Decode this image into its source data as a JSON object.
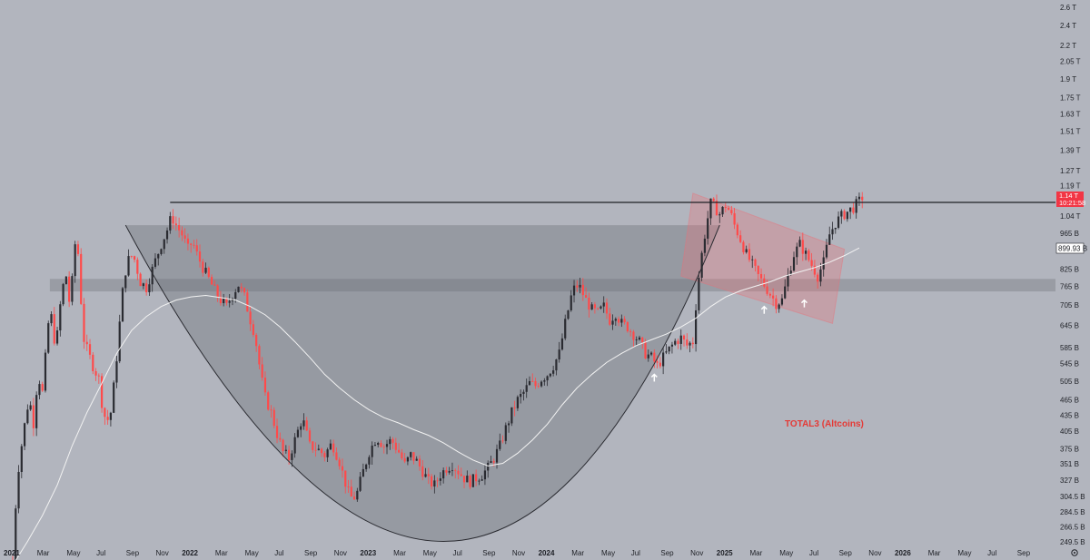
{
  "chart_data": {
    "type": "candlestick",
    "symbol_annotation": "TOTAL3 (Altcoins)",
    "y_scale": "log",
    "y_ticks": [
      {
        "label": "2.6 T",
        "value": 2600
      },
      {
        "label": "2.4 T",
        "value": 2400
      },
      {
        "label": "2.2 T",
        "value": 2200
      },
      {
        "label": "2.05 T",
        "value": 2050
      },
      {
        "label": "1.9 T",
        "value": 1900
      },
      {
        "label": "1.75 T",
        "value": 1750
      },
      {
        "label": "1.63 T",
        "value": 1630
      },
      {
        "label": "1.51 T",
        "value": 1510
      },
      {
        "label": "1.39 T",
        "value": 1390
      },
      {
        "label": "1.27 T",
        "value": 1270
      },
      {
        "label": "1.19 T",
        "value": 1190
      },
      {
        "label": "1.04 T",
        "value": 1040
      },
      {
        "label": "965 B",
        "value": 965
      },
      {
        "label": "825 B",
        "value": 825
      },
      {
        "label": "765 B",
        "value": 765
      },
      {
        "label": "705 B",
        "value": 705
      },
      {
        "label": "645 B",
        "value": 645
      },
      {
        "label": "585 B",
        "value": 585
      },
      {
        "label": "545 B",
        "value": 545
      },
      {
        "label": "505 B",
        "value": 505
      },
      {
        "label": "465 B",
        "value": 465
      },
      {
        "label": "435 B",
        "value": 435
      },
      {
        "label": "405 B",
        "value": 405
      },
      {
        "label": "375 B",
        "value": 375
      },
      {
        "label": "351 B",
        "value": 351
      },
      {
        "label": "327 B",
        "value": 327
      },
      {
        "label": "304.5 B",
        "value": 304.5
      },
      {
        "label": "284.5 B",
        "value": 284.5
      },
      {
        "label": "266.5 B",
        "value": 266.5
      },
      {
        "label": "249.5 B",
        "value": 249.5
      }
    ],
    "x_ticks": [
      {
        "label": "2021",
        "t": 0,
        "year": true
      },
      {
        "label": "Mar",
        "t": 2
      },
      {
        "label": "May",
        "t": 4
      },
      {
        "label": "Jul",
        "t": 6
      },
      {
        "label": "Sep",
        "t": 8
      },
      {
        "label": "Nov",
        "t": 10
      },
      {
        "label": "2022",
        "t": 12,
        "year": true
      },
      {
        "label": "Mar",
        "t": 14
      },
      {
        "label": "May",
        "t": 16
      },
      {
        "label": "Jul",
        "t": 18
      },
      {
        "label": "Sep",
        "t": 20
      },
      {
        "label": "Nov",
        "t": 22
      },
      {
        "label": "2023",
        "t": 24,
        "year": true
      },
      {
        "label": "Mar",
        "t": 26
      },
      {
        "label": "May",
        "t": 28
      },
      {
        "label": "Jul",
        "t": 30
      },
      {
        "label": "Sep",
        "t": 32
      },
      {
        "label": "Nov",
        "t": 34
      },
      {
        "label": "2024",
        "t": 36,
        "year": true
      },
      {
        "label": "Mar",
        "t": 38
      },
      {
        "label": "May",
        "t": 40
      },
      {
        "label": "Jul",
        "t": 42
      },
      {
        "label": "Sep",
        "t": 44
      },
      {
        "label": "Nov",
        "t": 46
      },
      {
        "label": "2025",
        "t": 48,
        "year": true
      },
      {
        "label": "Mar",
        "t": 50
      },
      {
        "label": "May",
        "t": 52
      },
      {
        "label": "Jul",
        "t": 54
      },
      {
        "label": "Sep",
        "t": 56
      },
      {
        "label": "Nov",
        "t": 58
      },
      {
        "label": "2026",
        "t": 60,
        "year": true
      },
      {
        "label": "Mar",
        "t": 62
      },
      {
        "label": "May",
        "t": 64
      },
      {
        "label": "Jul",
        "t": 66
      },
      {
        "label": "Sep",
        "t": 68
      }
    ],
    "price_path": [
      [
        0.0,
        230
      ],
      [
        0.3,
        330
      ],
      [
        0.7,
        400
      ],
      [
        1.1,
        470
      ],
      [
        1.4,
        420
      ],
      [
        1.7,
        520
      ],
      [
        2.0,
        480
      ],
      [
        2.5,
        700
      ],
      [
        2.9,
        580
      ],
      [
        3.3,
        750
      ],
      [
        3.6,
        800
      ],
      [
        3.9,
        680
      ],
      [
        4.1,
        900
      ],
      [
        4.3,
        940
      ],
      [
        4.5,
        830
      ],
      [
        4.7,
        620
      ],
      [
        5.0,
        580
      ],
      [
        5.4,
        540
      ],
      [
        5.8,
        510
      ],
      [
        6.0,
        460
      ],
      [
        6.3,
        420
      ],
      [
        6.6,
        440
      ],
      [
        6.9,
        520
      ],
      [
        7.2,
        650
      ],
      [
        7.5,
        800
      ],
      [
        7.9,
        880
      ],
      [
        8.2,
        860
      ],
      [
        8.6,
        780
      ],
      [
        9.0,
        760
      ],
      [
        9.5,
        840
      ],
      [
        10.0,
        920
      ],
      [
        10.4,
        980
      ],
      [
        10.7,
        1040
      ],
      [
        11.0,
        1000
      ],
      [
        11.4,
        960
      ],
      [
        11.8,
        900
      ],
      [
        12.1,
        930
      ],
      [
        12.4,
        880
      ],
      [
        12.8,
        830
      ],
      [
        13.2,
        790
      ],
      [
        13.6,
        750
      ],
      [
        14.0,
        720
      ],
      [
        14.4,
        700
      ],
      [
        14.8,
        740
      ],
      [
        15.2,
        770
      ],
      [
        15.6,
        730
      ],
      [
        16.0,
        660
      ],
      [
        16.3,
        620
      ],
      [
        16.7,
        520
      ],
      [
        17.0,
        470
      ],
      [
        17.4,
        440
      ],
      [
        17.8,
        400
      ],
      [
        18.2,
        370
      ],
      [
        18.6,
        360
      ],
      [
        19.0,
        390
      ],
      [
        19.5,
        430
      ],
      [
        20.0,
        380
      ],
      [
        20.5,
        375
      ],
      [
        21.0,
        365
      ],
      [
        21.5,
        385
      ],
      [
        22.0,
        355
      ],
      [
        22.3,
        330
      ],
      [
        22.6,
        310
      ],
      [
        22.9,
        300
      ],
      [
        23.2,
        310
      ],
      [
        23.6,
        340
      ],
      [
        24.0,
        370
      ],
      [
        24.5,
        395
      ],
      [
        25.0,
        380
      ],
      [
        25.5,
        390
      ],
      [
        26.0,
        370
      ],
      [
        26.4,
        350
      ],
      [
        26.8,
        365
      ],
      [
        27.2,
        355
      ],
      [
        27.6,
        340
      ],
      [
        28.0,
        325
      ],
      [
        28.4,
        320
      ],
      [
        28.8,
        335
      ],
      [
        29.2,
        345
      ],
      [
        29.6,
        350
      ],
      [
        30.0,
        340
      ],
      [
        30.4,
        330
      ],
      [
        30.8,
        325
      ],
      [
        31.2,
        330
      ],
      [
        31.6,
        335
      ],
      [
        32.0,
        345
      ],
      [
        32.4,
        360
      ],
      [
        32.8,
        380
      ],
      [
        33.2,
        410
      ],
      [
        33.6,
        440
      ],
      [
        34.0,
        465
      ],
      [
        34.4,
        480
      ],
      [
        34.8,
        500
      ],
      [
        35.2,
        495
      ],
      [
        35.6,
        510
      ],
      [
        36.0,
        520
      ],
      [
        36.4,
        540
      ],
      [
        36.8,
        570
      ],
      [
        37.2,
        650
      ],
      [
        37.6,
        730
      ],
      [
        37.9,
        770
      ],
      [
        38.2,
        760
      ],
      [
        38.6,
        720
      ],
      [
        39.0,
        690
      ],
      [
        39.4,
        680
      ],
      [
        39.8,
        700
      ],
      [
        40.2,
        660
      ],
      [
        40.6,
        680
      ],
      [
        41.0,
        650
      ],
      [
        41.4,
        640
      ],
      [
        41.8,
        620
      ],
      [
        42.2,
        600
      ],
      [
        42.6,
        570
      ],
      [
        43.0,
        560
      ],
      [
        43.4,
        540
      ],
      [
        43.8,
        560
      ],
      [
        44.2,
        580
      ],
      [
        44.6,
        600
      ],
      [
        45.0,
        610
      ],
      [
        45.4,
        590
      ],
      [
        45.8,
        600
      ],
      [
        46.1,
        760
      ],
      [
        46.4,
        880
      ],
      [
        46.7,
        1000
      ],
      [
        47.0,
        1100
      ],
      [
        47.3,
        1080
      ],
      [
        47.6,
        1050
      ],
      [
        48.0,
        1090
      ],
      [
        48.3,
        1060
      ],
      [
        48.6,
        1000
      ],
      [
        49.0,
        940
      ],
      [
        49.4,
        880
      ],
      [
        49.8,
        840
      ],
      [
        50.2,
        800
      ],
      [
        50.6,
        770
      ],
      [
        51.0,
        740
      ],
      [
        51.4,
        710
      ],
      [
        51.8,
        720
      ],
      [
        52.2,
        800
      ],
      [
        52.6,
        880
      ],
      [
        53.0,
        920
      ],
      [
        53.4,
        880
      ],
      [
        53.8,
        840
      ],
      [
        54.2,
        800
      ],
      [
        54.6,
        850
      ],
      [
        55.0,
        960
      ],
      [
        55.4,
        1010
      ],
      [
        55.8,
        1040
      ],
      [
        56.2,
        1060
      ],
      [
        56.6,
        1080
      ],
      [
        57.0,
        1110
      ],
      [
        57.3,
        1140
      ]
    ],
    "moving_average": [
      [
        0.2,
        230
      ],
      [
        1,
        250
      ],
      [
        2,
        280
      ],
      [
        3,
        320
      ],
      [
        4,
        380
      ],
      [
        5,
        440
      ],
      [
        6,
        500
      ],
      [
        7,
        570
      ],
      [
        8,
        630
      ],
      [
        9,
        670
      ],
      [
        10,
        700
      ],
      [
        11,
        720
      ],
      [
        12,
        730
      ],
      [
        13,
        735
      ],
      [
        14,
        728
      ],
      [
        15,
        720
      ],
      [
        16,
        700
      ],
      [
        17,
        675
      ],
      [
        18,
        640
      ],
      [
        19,
        600
      ],
      [
        20,
        560
      ],
      [
        21,
        520
      ],
      [
        22,
        490
      ],
      [
        23,
        465
      ],
      [
        24,
        445
      ],
      [
        25,
        430
      ],
      [
        26,
        420
      ],
      [
        27,
        408
      ],
      [
        28,
        398
      ],
      [
        29,
        385
      ],
      [
        30,
        370
      ],
      [
        31,
        357
      ],
      [
        32,
        348
      ],
      [
        33,
        352
      ],
      [
        34,
        368
      ],
      [
        35,
        390
      ],
      [
        36,
        418
      ],
      [
        37,
        455
      ],
      [
        38,
        490
      ],
      [
        39,
        520
      ],
      [
        40,
        548
      ],
      [
        41,
        570
      ],
      [
        42,
        590
      ],
      [
        43,
        605
      ],
      [
        44,
        620
      ],
      [
        45,
        640
      ],
      [
        46,
        665
      ],
      [
        47,
        700
      ],
      [
        48,
        730
      ],
      [
        49,
        750
      ],
      [
        50,
        765
      ],
      [
        51,
        780
      ],
      [
        52,
        800
      ],
      [
        53,
        815
      ],
      [
        54,
        830
      ],
      [
        55,
        850
      ],
      [
        56,
        875
      ],
      [
        57,
        905
      ]
    ],
    "ath_resistance": {
      "value": 1105,
      "from_t": 10.6
    },
    "cup_top_band": {
      "value": 1000,
      "from_t": 7.6,
      "to_t": 47.6
    },
    "support_zone": {
      "low": 748,
      "high": 790
    },
    "cup_curve": {
      "start": [
        7.6,
        1000
      ],
      "bottom": [
        29.0,
        250
      ],
      "end": [
        47.6,
        1000
      ]
    },
    "channel_corners": [
      [
        45.8,
        1150
      ],
      [
        56.0,
        900
      ],
      [
        55.2,
        650
      ],
      [
        45.0,
        800
      ]
    ],
    "arrows": [
      {
        "t": 43.2,
        "value": 520
      },
      {
        "t": 50.6,
        "value": 700
      },
      {
        "t": 53.3,
        "value": 720
      }
    ],
    "current_price": {
      "label": "1.14 T",
      "countdown": "10:21:58",
      "value": 1105
    },
    "ma_tag": {
      "label": "899.93 B",
      "value": 900
    },
    "colors": {
      "background": "#b2b5be",
      "up_candle": "#2a2b31",
      "down_candle": "#ff4a4a",
      "cup_fill": "#5e6068",
      "ma_line": "#f2f2f2",
      "channel": "#e8727a",
      "price_tag": "#f23645",
      "annotation": "#e53935"
    },
    "grid": false
  }
}
